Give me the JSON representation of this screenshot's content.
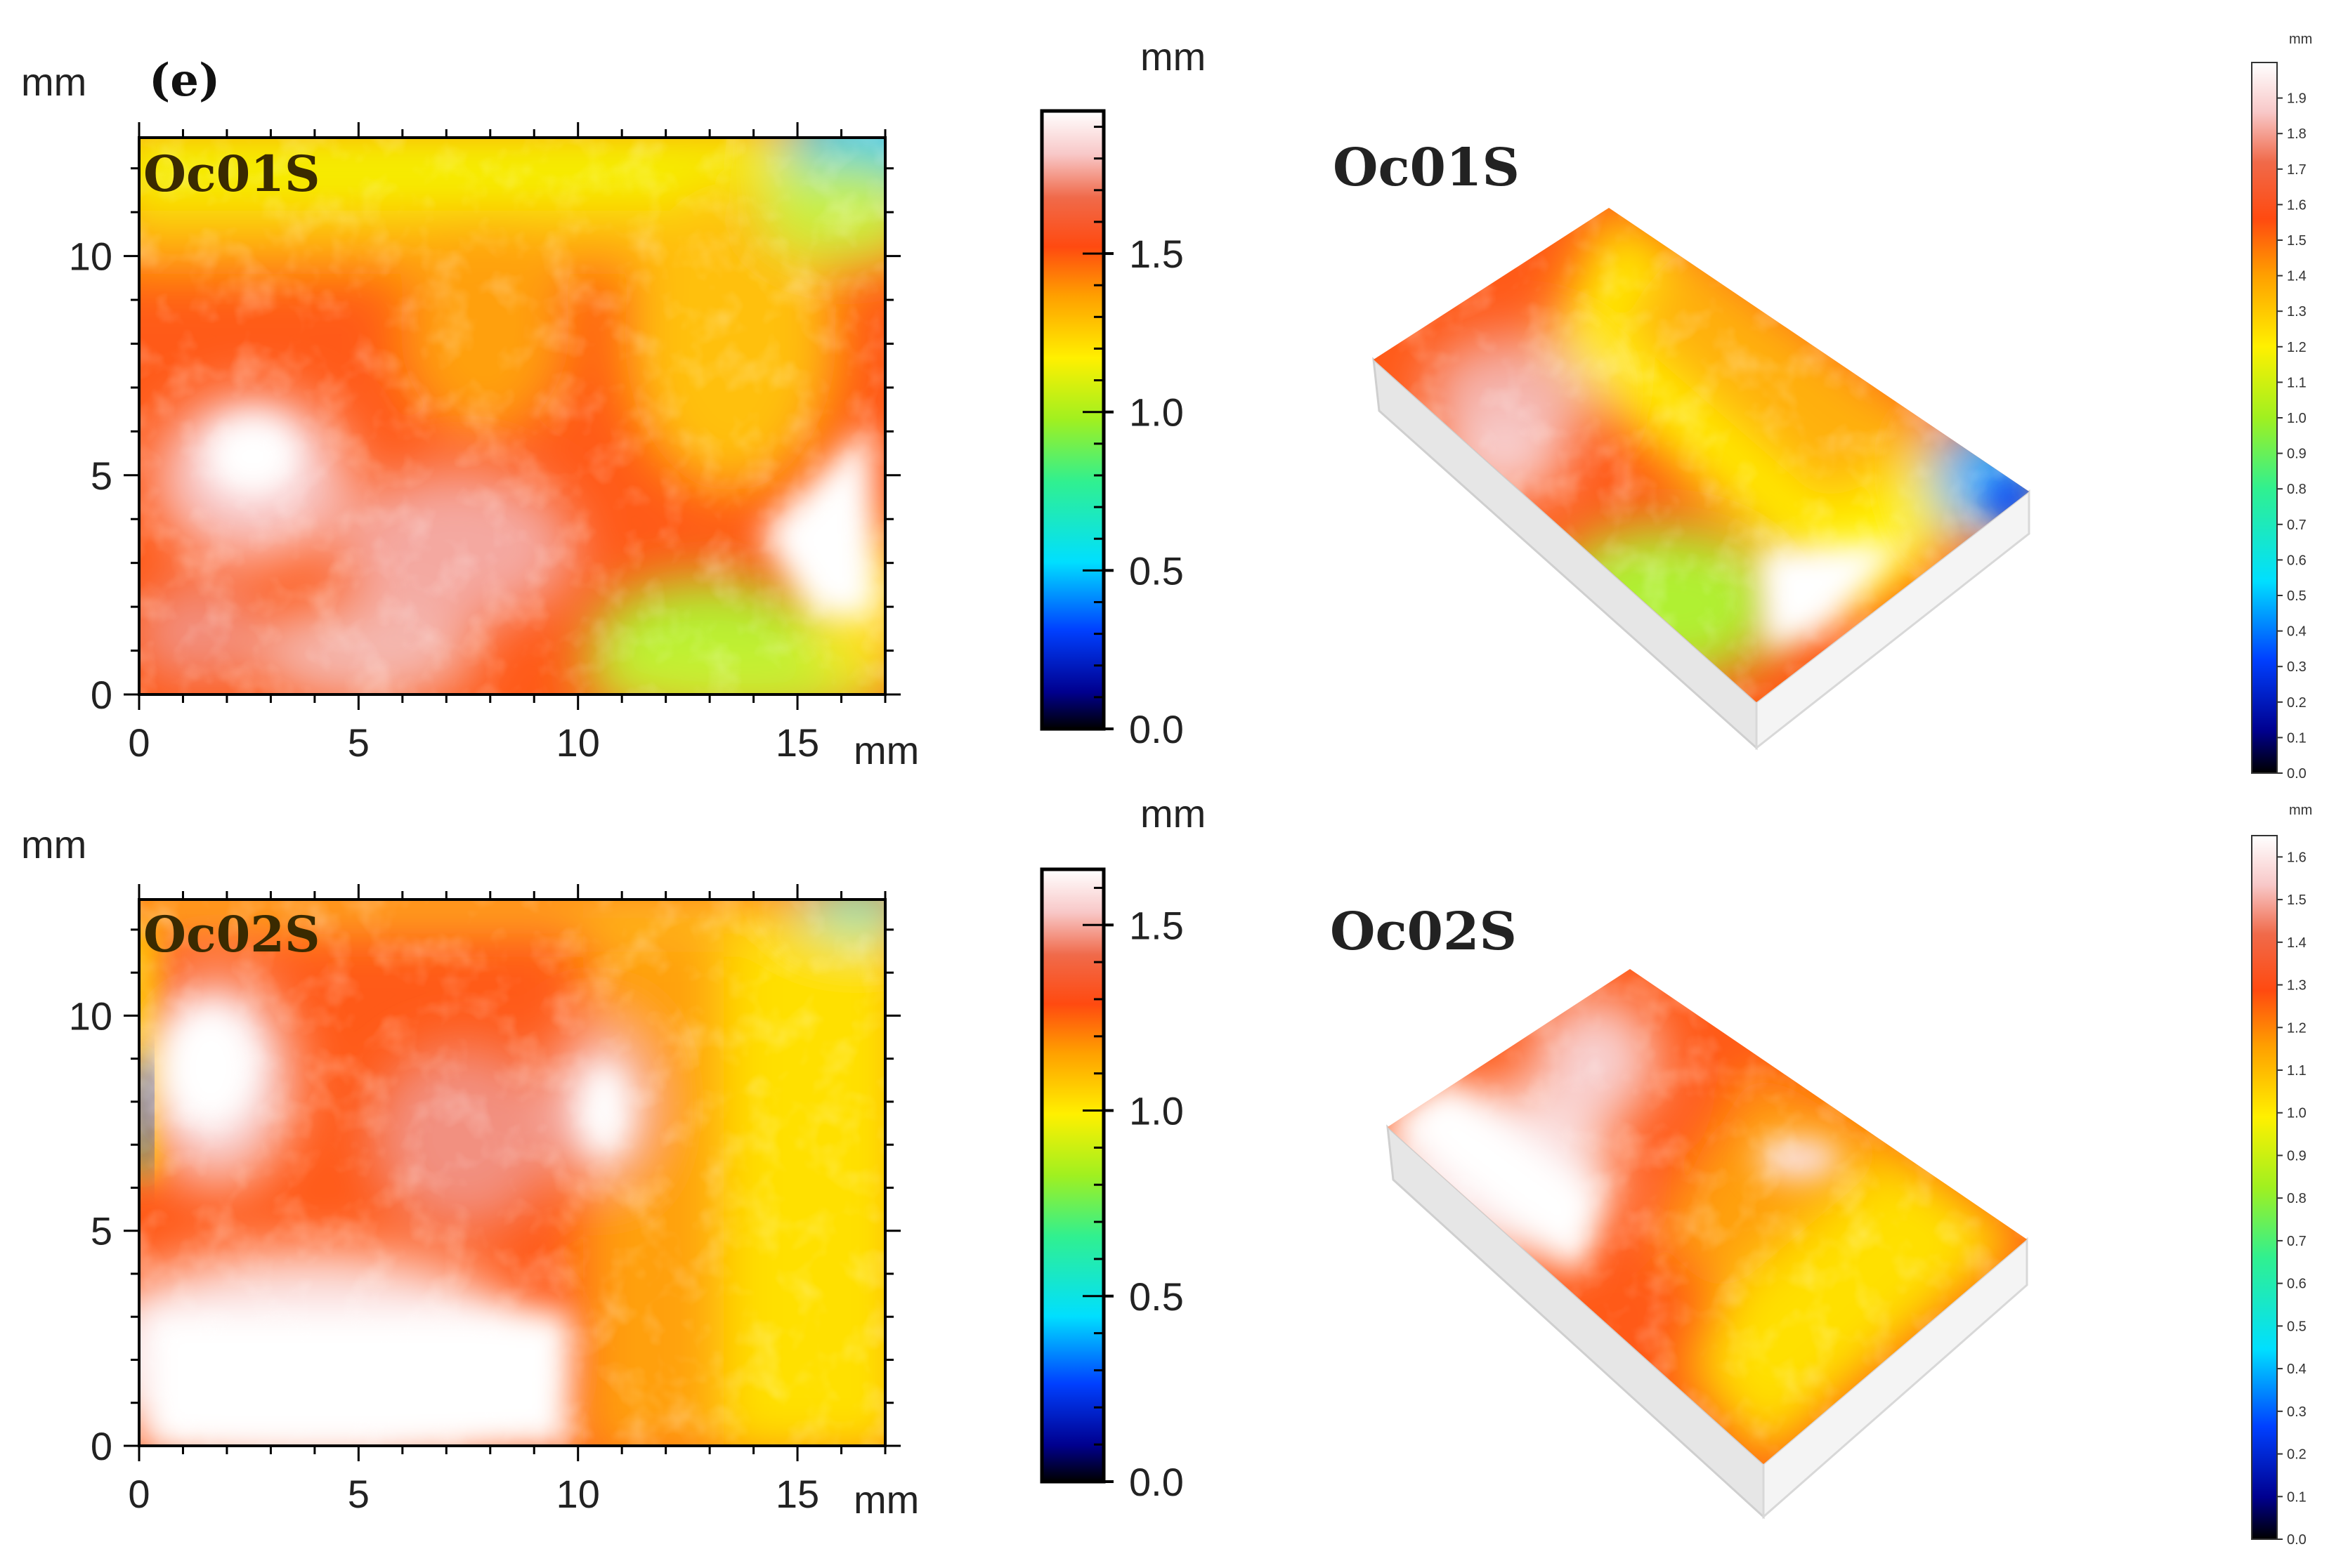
{
  "figure": {
    "panel_label": "(e)"
  },
  "chart_data": [
    {
      "type": "heatmap",
      "id": "oc01s-2d",
      "sample_label": "Oc01S",
      "x_unit_label": "mm",
      "y_unit_label": "mm",
      "x_ticks": [
        0,
        5,
        10,
        15
      ],
      "y_ticks": [
        0,
        5,
        10
      ],
      "xlim": [
        0,
        17
      ],
      "ylim": [
        0,
        12.7
      ],
      "colorbar": {
        "title": "mm",
        "range": [
          0.0,
          1.95
        ],
        "ticks": [
          "0.0",
          "0.5",
          "1.0",
          "1.5"
        ],
        "tick_values": [
          0.0,
          0.5,
          1.0,
          1.5
        ]
      },
      "features": [
        {
          "region": "background",
          "value": 1.6
        },
        {
          "region": "top band",
          "value": 1.25
        },
        {
          "region": "top-right corner",
          "value": 0.45
        },
        {
          "region": "bottom-center green patch",
          "value": 1.05
        },
        {
          "region": "right peak",
          "value": 1.9
        },
        {
          "region": "left-center white area",
          "value": 1.8
        }
      ]
    },
    {
      "type": "heatmap",
      "id": "oc01s-3d",
      "sample_label": "Oc01S",
      "colorbar": {
        "title": "mm",
        "range": [
          0.0,
          2.0
        ],
        "ticks": [
          "0.0",
          "0.1",
          "0.2",
          "0.3",
          "0.4",
          "0.5",
          "0.6",
          "0.7",
          "0.8",
          "0.9",
          "1.0",
          "1.1",
          "1.2",
          "1.3",
          "1.4",
          "1.5",
          "1.6",
          "1.7",
          "1.8",
          "1.9"
        ]
      }
    },
    {
      "type": "heatmap",
      "id": "oc02s-2d",
      "sample_label": "Oc02S",
      "x_unit_label": "mm",
      "y_unit_label": "mm",
      "x_ticks": [
        0,
        5,
        10,
        15
      ],
      "y_ticks": [
        0,
        5,
        10
      ],
      "xlim": [
        0,
        17
      ],
      "ylim": [
        0,
        12.7
      ],
      "colorbar": {
        "title": "mm",
        "range": [
          0.0,
          1.65
        ],
        "ticks": [
          "0.0",
          "0.5",
          "1.0",
          "1.5"
        ],
        "tick_values": [
          0.0,
          0.5,
          1.0,
          1.5
        ]
      },
      "features": [
        {
          "region": "right half",
          "value": 1.05
        },
        {
          "region": "center",
          "value": 1.3
        },
        {
          "region": "bottom-left white area",
          "value": 1.6
        },
        {
          "region": "upper-left white area",
          "value": 1.55
        },
        {
          "region": "left edge",
          "value": 0.3
        }
      ]
    },
    {
      "type": "heatmap",
      "id": "oc02s-3d",
      "sample_label": "Oc02S",
      "colorbar": {
        "title": "mm",
        "range": [
          0.0,
          1.65
        ],
        "ticks": [
          "0.0",
          "0.1",
          "0.2",
          "0.3",
          "0.4",
          "0.5",
          "0.6",
          "0.7",
          "0.8",
          "0.9",
          "1.0",
          "1.1",
          "1.2",
          "1.3",
          "1.4",
          "1.5",
          "1.6"
        ]
      }
    }
  ]
}
